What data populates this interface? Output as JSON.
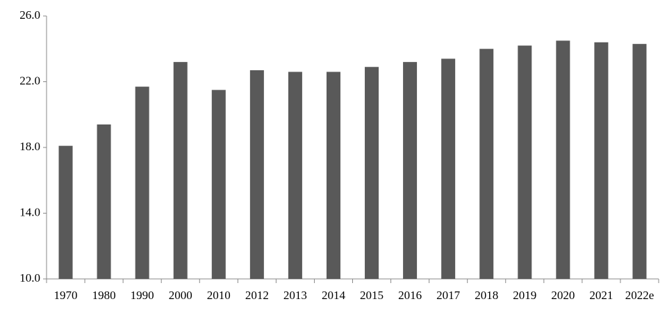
{
  "chart_data": {
    "type": "bar",
    "categories": [
      "1970",
      "1980",
      "1990",
      "2000",
      "2010",
      "2012",
      "2013",
      "2014",
      "2015",
      "2016",
      "2017",
      "2018",
      "2019",
      "2020",
      "2021",
      "2022e"
    ],
    "values": [
      18.1,
      19.4,
      21.7,
      23.2,
      21.5,
      22.7,
      22.6,
      22.6,
      22.9,
      23.2,
      23.4,
      24.0,
      24.2,
      24.5,
      24.4,
      24.3
    ],
    "color": "#595959",
    "ylim": [
      10,
      26
    ],
    "yticks": [
      {
        "value": 10,
        "label": "10.0"
      },
      {
        "value": 14,
        "label": "14.0"
      },
      {
        "value": 18,
        "label": "18.0"
      },
      {
        "value": 22,
        "label": "22.0"
      },
      {
        "value": 26,
        "label": "26.0"
      }
    ],
    "grid": false
  }
}
